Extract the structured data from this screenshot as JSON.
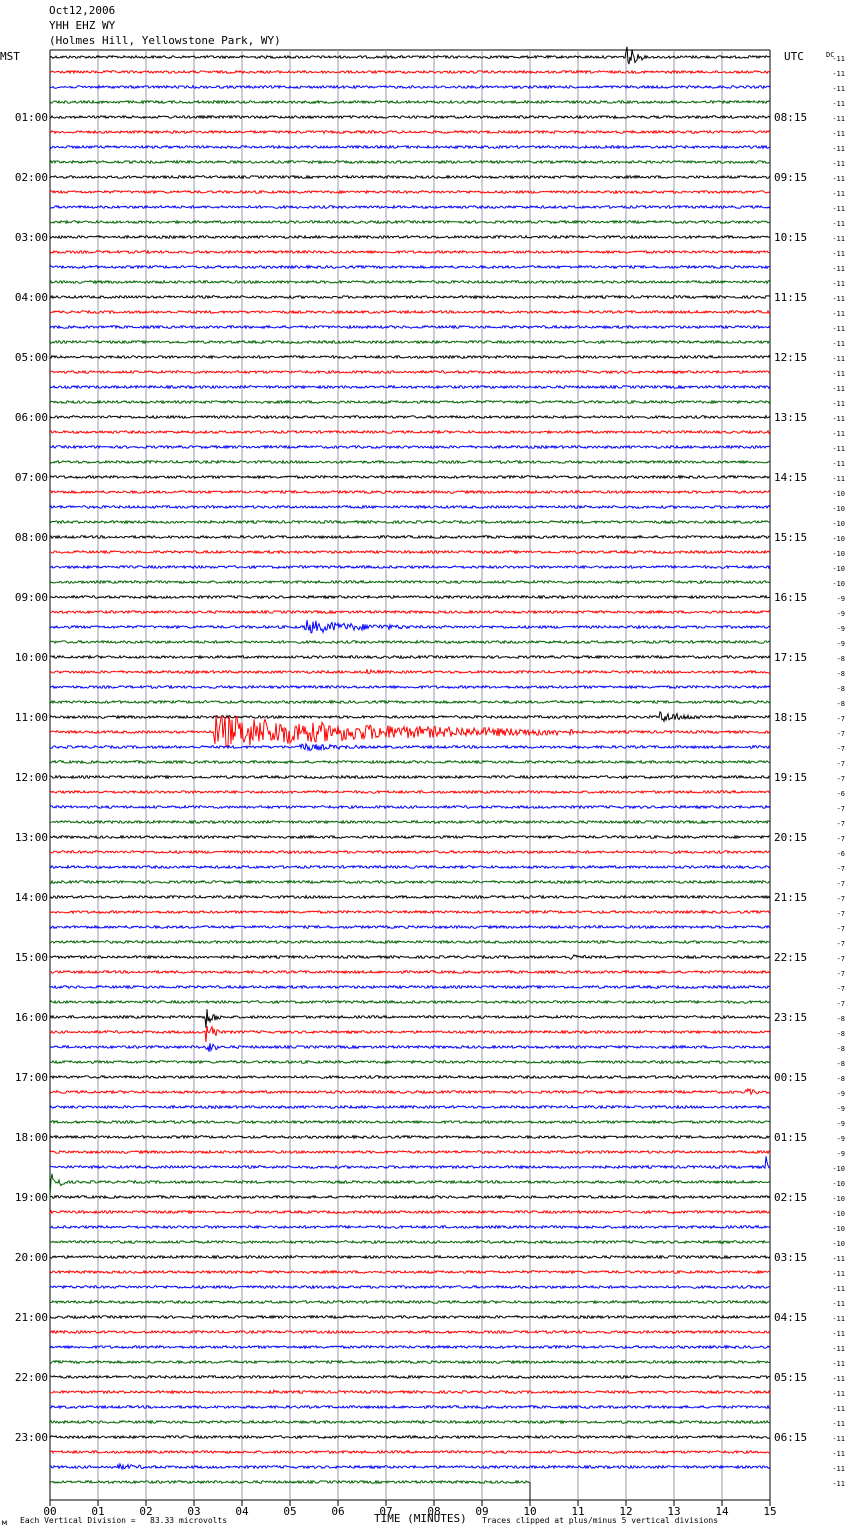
{
  "header": {
    "date": "Oct12,2006",
    "station": "YHH EHZ WY",
    "location": "(Holmes Hill, Yellowstone Park, WY)"
  },
  "left_tz": "MST",
  "right_tz": "UTC",
  "dc_label": "DC",
  "footer": {
    "scale_note": "Each Vertical Division =   83.33 microvolts",
    "xlabel": "TIME (MINUTES)",
    "clip_note": "Traces clipped at plus/minus 5 vertical divisions"
  },
  "chart_data": {
    "type": "line",
    "title": "YHH EHZ WY",
    "xlabel": "TIME (MINUTES)",
    "xlim": [
      0,
      15
    ],
    "x_ticks": [
      "00",
      "01",
      "02",
      "03",
      "04",
      "05",
      "06",
      "07",
      "08",
      "09",
      "10",
      "11",
      "12",
      "13",
      "14",
      "15"
    ],
    "left_hour_labels": [
      "01:00",
      "02:00",
      "03:00",
      "04:00",
      "05:00",
      "06:00",
      "07:00",
      "08:00",
      "09:00",
      "10:00",
      "11:00",
      "12:00",
      "13:00",
      "14:00",
      "15:00",
      "16:00",
      "17:00",
      "18:00",
      "19:00",
      "20:00",
      "21:00",
      "22:00",
      "23:00"
    ],
    "right_hour_labels": [
      "08:15",
      "09:15",
      "10:15",
      "11:15",
      "12:15",
      "13:15",
      "14:15",
      "15:15",
      "16:15",
      "17:15",
      "18:15",
      "19:15",
      "20:15",
      "21:15",
      "22:15",
      "23:15",
      "00:15",
      "01:15",
      "02:15",
      "03:15",
      "04:15",
      "05:15",
      "06:15"
    ],
    "trace_colors": [
      "#000000",
      "#ff0000",
      "#0000ff",
      "#006400"
    ],
    "grid_color": "#9a9aaa",
    "dc_offsets": [
      "-11",
      "-11",
      "-11",
      "-11",
      "-11",
      "-11",
      "-11",
      "-11",
      "-11",
      "-11",
      "-11",
      "-11",
      "-11",
      "-11",
      "-11",
      "-11",
      "-11",
      "-11",
      "-11",
      "-11",
      "-11",
      "-11",
      "-11",
      "-11",
      "-11",
      "-11",
      "-11",
      "-11",
      "-11",
      "-10",
      "-10",
      "-10",
      "-10",
      "-10",
      "-10",
      "-10",
      "-9",
      "-9",
      "-9",
      "-9",
      "-8",
      "-8",
      "-8",
      "-8",
      "-7",
      "-7",
      "-7",
      "-7",
      "-7",
      "-6",
      "-7",
      "-7",
      "-7",
      "-6",
      "-7",
      "-7",
      "-7",
      "-7",
      "-7",
      "-7",
      "-7",
      "-7",
      "-7",
      "-7",
      "-8",
      "-8",
      "-8",
      "-8",
      "-8",
      "-9",
      "-9",
      "-9",
      "-9",
      "-9",
      "-10",
      "-10",
      "-10",
      "-10",
      "-10",
      "-10",
      "-11",
      "-11",
      "-11",
      "-11",
      "-11",
      "-11",
      "-11",
      "-11",
      "-11",
      "-11",
      "-11",
      "-11",
      "-11",
      "-11",
      "-11",
      "-11"
    ],
    "last_trace_end_minute": 10,
    "events": [
      {
        "row": 0,
        "start": 12.0,
        "dur": 0.35,
        "amp": 2.0
      },
      {
        "row": 38,
        "start": 5.3,
        "dur": 2.2,
        "amp": 0.9
      },
      {
        "row": 41,
        "start": 6.6,
        "dur": 0.3,
        "amp": 0.3
      },
      {
        "row": 44,
        "start": 12.7,
        "dur": 1.0,
        "amp": 0.7
      },
      {
        "row": 45,
        "start": 3.4,
        "dur": 7.5,
        "amp": 2.4
      },
      {
        "row": 46,
        "start": 5.2,
        "dur": 1.2,
        "amp": 0.5
      },
      {
        "row": 60,
        "start": 10.8,
        "dur": 0.4,
        "amp": 0.3
      },
      {
        "row": 64,
        "start": 3.25,
        "dur": 0.3,
        "amp": 1.6
      },
      {
        "row": 65,
        "start": 3.25,
        "dur": 0.3,
        "amp": 2.2
      },
      {
        "row": 66,
        "start": 3.25,
        "dur": 0.25,
        "amp": 1.2
      },
      {
        "row": 69,
        "start": 14.5,
        "dur": 0.3,
        "amp": 0.4
      },
      {
        "row": 74,
        "start": 14.9,
        "dur": 0.1,
        "amp": 2.0
      },
      {
        "row": 75,
        "start": 0.0,
        "dur": 0.3,
        "amp": 2.2
      },
      {
        "row": 89,
        "start": 4.6,
        "dur": 0.2,
        "amp": 0.3
      },
      {
        "row": 94,
        "start": 1.4,
        "dur": 0.8,
        "amp": 0.3
      }
    ]
  }
}
